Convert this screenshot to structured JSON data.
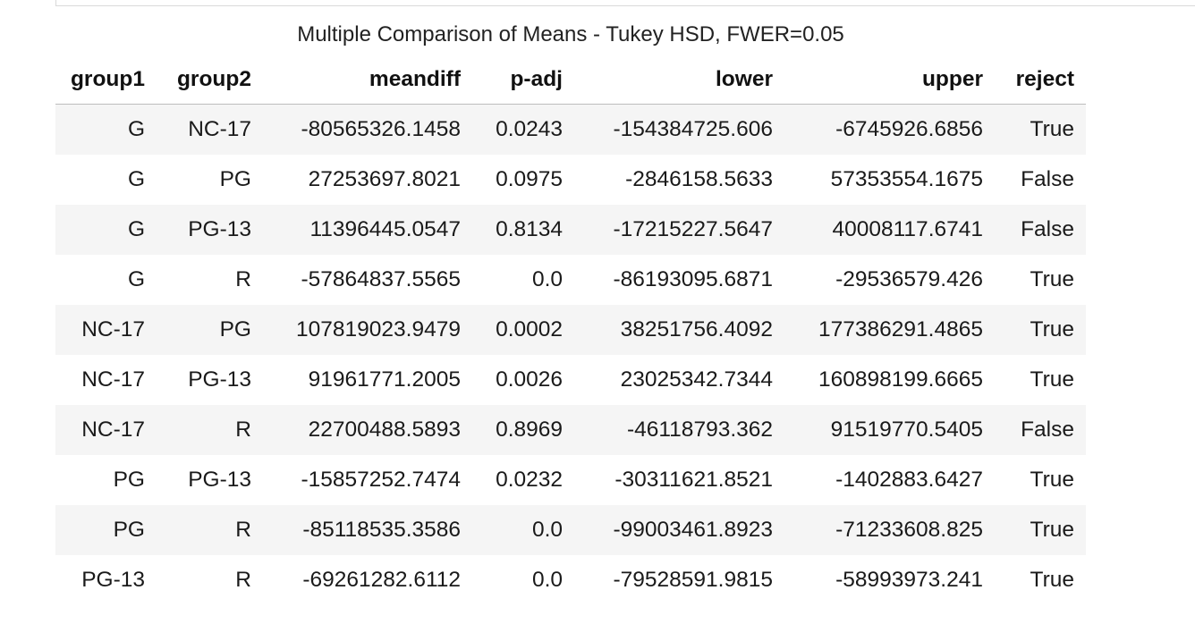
{
  "caption": "Multiple Comparison of Means - Tukey HSD, FWER=0.05",
  "columns": [
    "group1",
    "group2",
    "meandiff",
    "p-adj",
    "lower",
    "upper",
    "reject"
  ],
  "rows": [
    [
      "G",
      "NC-17",
      "-80565326.1458",
      "0.0243",
      "-154384725.606",
      "-6745926.6856",
      "True"
    ],
    [
      "G",
      "PG",
      "27253697.8021",
      "0.0975",
      "-2846158.5633",
      "57353554.1675",
      "False"
    ],
    [
      "G",
      "PG-13",
      "11396445.0547",
      "0.8134",
      "-17215227.5647",
      "40008117.6741",
      "False"
    ],
    [
      "G",
      "R",
      "-57864837.5565",
      "0.0",
      "-86193095.6871",
      "-29536579.426",
      "True"
    ],
    [
      "NC-17",
      "PG",
      "107819023.9479",
      "0.0002",
      "38251756.4092",
      "177386291.4865",
      "True"
    ],
    [
      "NC-17",
      "PG-13",
      "91961771.2005",
      "0.0026",
      "23025342.7344",
      "160898199.6665",
      "True"
    ],
    [
      "NC-17",
      "R",
      "22700488.5893",
      "0.8969",
      "-46118793.362",
      "91519770.5405",
      "False"
    ],
    [
      "PG",
      "PG-13",
      "-15857252.7474",
      "0.0232",
      "-30311621.8521",
      "-1402883.6427",
      "True"
    ],
    [
      "PG",
      "R",
      "-85118535.3586",
      "0.0",
      "-99003461.8923",
      "-71233608.825",
      "True"
    ],
    [
      "PG-13",
      "R",
      "-69261282.6112",
      "0.0",
      "-79528591.9815",
      "-58993973.241",
      "True"
    ]
  ]
}
